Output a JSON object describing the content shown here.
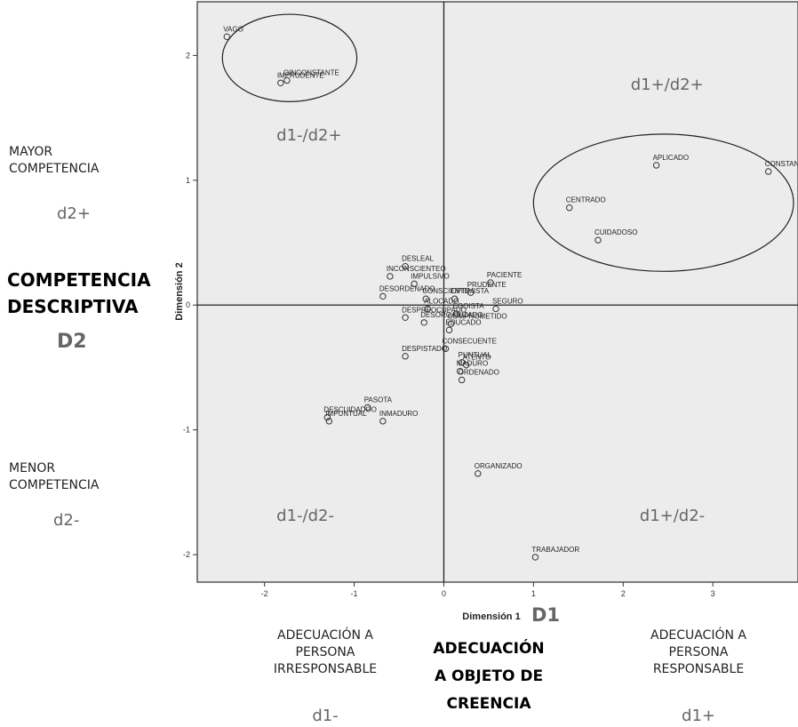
{
  "left_axis_annotations": {
    "upper_label": [
      "MAYOR",
      "COMPETENCIA"
    ],
    "upper_code": "d2+",
    "main_label": [
      "COMPETENCIA",
      "DESCRIPTIVA"
    ],
    "main_code": "D2",
    "lower_label": [
      "MENOR",
      "COMPETENCIA"
    ],
    "lower_code": "d2-"
  },
  "bottom_annotations": {
    "left_label": [
      "ADECUACIÓN A",
      "PERSONA",
      "IRRESPONSABLE"
    ],
    "left_code": "d1-",
    "center_label": [
      "ADECUACIÓN",
      "A OBJETO DE",
      "CREENCIA"
    ],
    "center_code": "D1",
    "right_label": [
      "ADECUACIÓN A",
      "PERSONA",
      "RESPONSABLE"
    ],
    "right_code": "d1+"
  },
  "colors": {
    "plot_bg": "#ececec",
    "axis_line": "#222222",
    "quadrant_text": "#666666",
    "point_stroke": "#333333",
    "code_text": "#666666"
  },
  "chart_data": {
    "type": "scatter",
    "xlabel": "Dimensión 1",
    "ylabel": "Dimensión 2",
    "xlim": [
      -2.75,
      3.95
    ],
    "ylim": [
      -2.22,
      2.43
    ],
    "xticks": [
      -2,
      -1,
      0,
      1,
      2,
      3
    ],
    "yticks": [
      -2,
      -1,
      0,
      1,
      2
    ],
    "reference_lines": {
      "x": 0,
      "y": 0
    },
    "quadrant_labels": [
      {
        "text": "d1-/d2+",
        "x": -1.45,
        "y": 1.35
      },
      {
        "text": "d1+/d2+",
        "x": 2.5,
        "y": 1.75
      },
      {
        "text": "d1-/d2-",
        "x": -1.45,
        "y": -1.7
      },
      {
        "text": "d1+/d2-",
        "x": 2.6,
        "y": -1.7
      }
    ],
    "points": [
      {
        "label": "VAGO",
        "x": -2.42,
        "y": 2.15
      },
      {
        "label": "OINCONSTANTE",
        "x": -1.75,
        "y": 1.8
      },
      {
        "label": "IMPRUDENTE",
        "x": -1.82,
        "y": 1.78
      },
      {
        "label": "APLICADO",
        "x": 2.37,
        "y": 1.12
      },
      {
        "label": "CONSTANTE",
        "x": 3.62,
        "y": 1.07
      },
      {
        "label": "CENTRADO",
        "x": 1.4,
        "y": 0.78
      },
      {
        "label": "CUIDADOSO",
        "x": 1.72,
        "y": 0.52
      },
      {
        "label": "DESLEAL",
        "x": -0.43,
        "y": 0.31
      },
      {
        "label": "INCONSCIENTEO",
        "x": -0.6,
        "y": 0.23
      },
      {
        "label": "IMPULSIVO",
        "x": -0.33,
        "y": 0.17
      },
      {
        "label": "PRUDENTE",
        "x": 0.3,
        "y": 0.1
      },
      {
        "label": "PACIENTE",
        "x": 0.52,
        "y": 0.18
      },
      {
        "label": "CONSCIENTE",
        "x": -0.2,
        "y": 0.05
      },
      {
        "label": "DESORDENADO",
        "x": -0.68,
        "y": 0.07
      },
      {
        "label": "OPTIMISTA",
        "x": 0.12,
        "y": 0.05
      },
      {
        "label": "ALOCADO",
        "x": -0.18,
        "y": -0.03
      },
      {
        "label": "SEGURO",
        "x": 0.58,
        "y": -0.03
      },
      {
        "label": "EGOISTA",
        "x": 0.14,
        "y": -0.07
      },
      {
        "label": "COMPROMETIDO",
        "x": 0.08,
        "y": -0.15
      },
      {
        "label": "DESPREOCUPADO",
        "x": -0.43,
        "y": -0.1
      },
      {
        "label": "DESORGANIZADO",
        "x": -0.22,
        "y": -0.14
      },
      {
        "label": "EDUCADO",
        "x": 0.06,
        "y": -0.2
      },
      {
        "label": "CONSECUENTE",
        "x": 0.02,
        "y": -0.35
      },
      {
        "label": "DESPISTADO",
        "x": -0.43,
        "y": -0.41
      },
      {
        "label": "PUNTUAL",
        "x": 0.2,
        "y": -0.46
      },
      {
        "label": "ATENTO",
        "x": 0.25,
        "y": -0.48
      },
      {
        "label": "MADURO",
        "x": 0.18,
        "y": -0.53
      },
      {
        "label": "ORDENADO",
        "x": 0.2,
        "y": -0.6
      },
      {
        "label": "PASOTA",
        "x": -0.85,
        "y": -0.82
      },
      {
        "label": "DESCUIDADOO",
        "x": -1.3,
        "y": -0.9
      },
      {
        "label": "INMADURO",
        "x": -0.68,
        "y": -0.93
      },
      {
        "label": "IMPUNTUAL",
        "x": -1.28,
        "y": -0.93
      },
      {
        "label": "ORGANIZADO",
        "x": 0.38,
        "y": -1.35
      },
      {
        "label": "TRABAJADOR",
        "x": 1.02,
        "y": -2.02
      }
    ],
    "clusters": [
      {
        "cx": -1.72,
        "cy": 1.98,
        "rx": 0.75,
        "ry": 0.35
      },
      {
        "cx": 2.45,
        "cy": 0.82,
        "rx": 1.45,
        "ry": 0.55
      }
    ]
  }
}
